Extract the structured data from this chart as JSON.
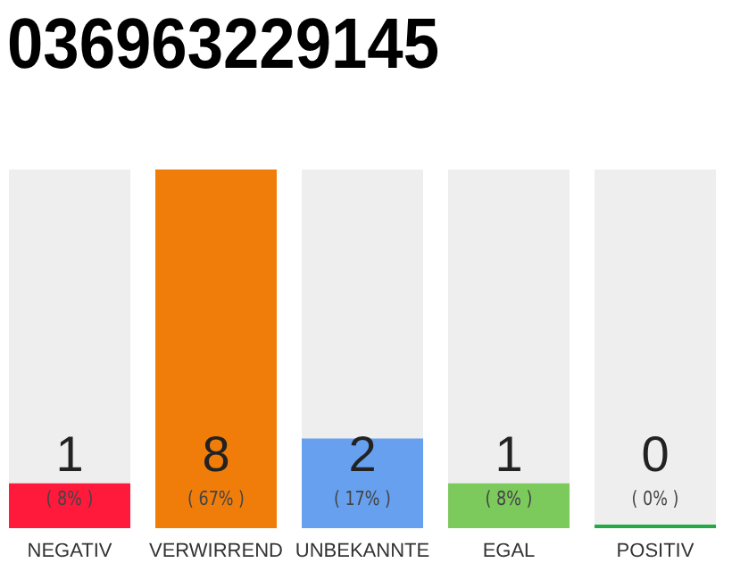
{
  "chart_data": {
    "type": "bar",
    "title": "036963229145",
    "categories": [
      "NEGATIV",
      "VERWIRREND",
      "UNBEKANNTE",
      "EGAL",
      "POSITIV"
    ],
    "values": [
      1,
      8,
      2,
      1,
      0
    ],
    "colors": [
      "#ff1a3c",
      "#f07d0a",
      "#66a0ee",
      "#7cc95c",
      "#22aa44"
    ],
    "data_labels": true,
    "annotations": [
      "( 8% )",
      "( 67% )",
      "( 17% )",
      "( 8% )",
      "( 0% )"
    ]
  }
}
